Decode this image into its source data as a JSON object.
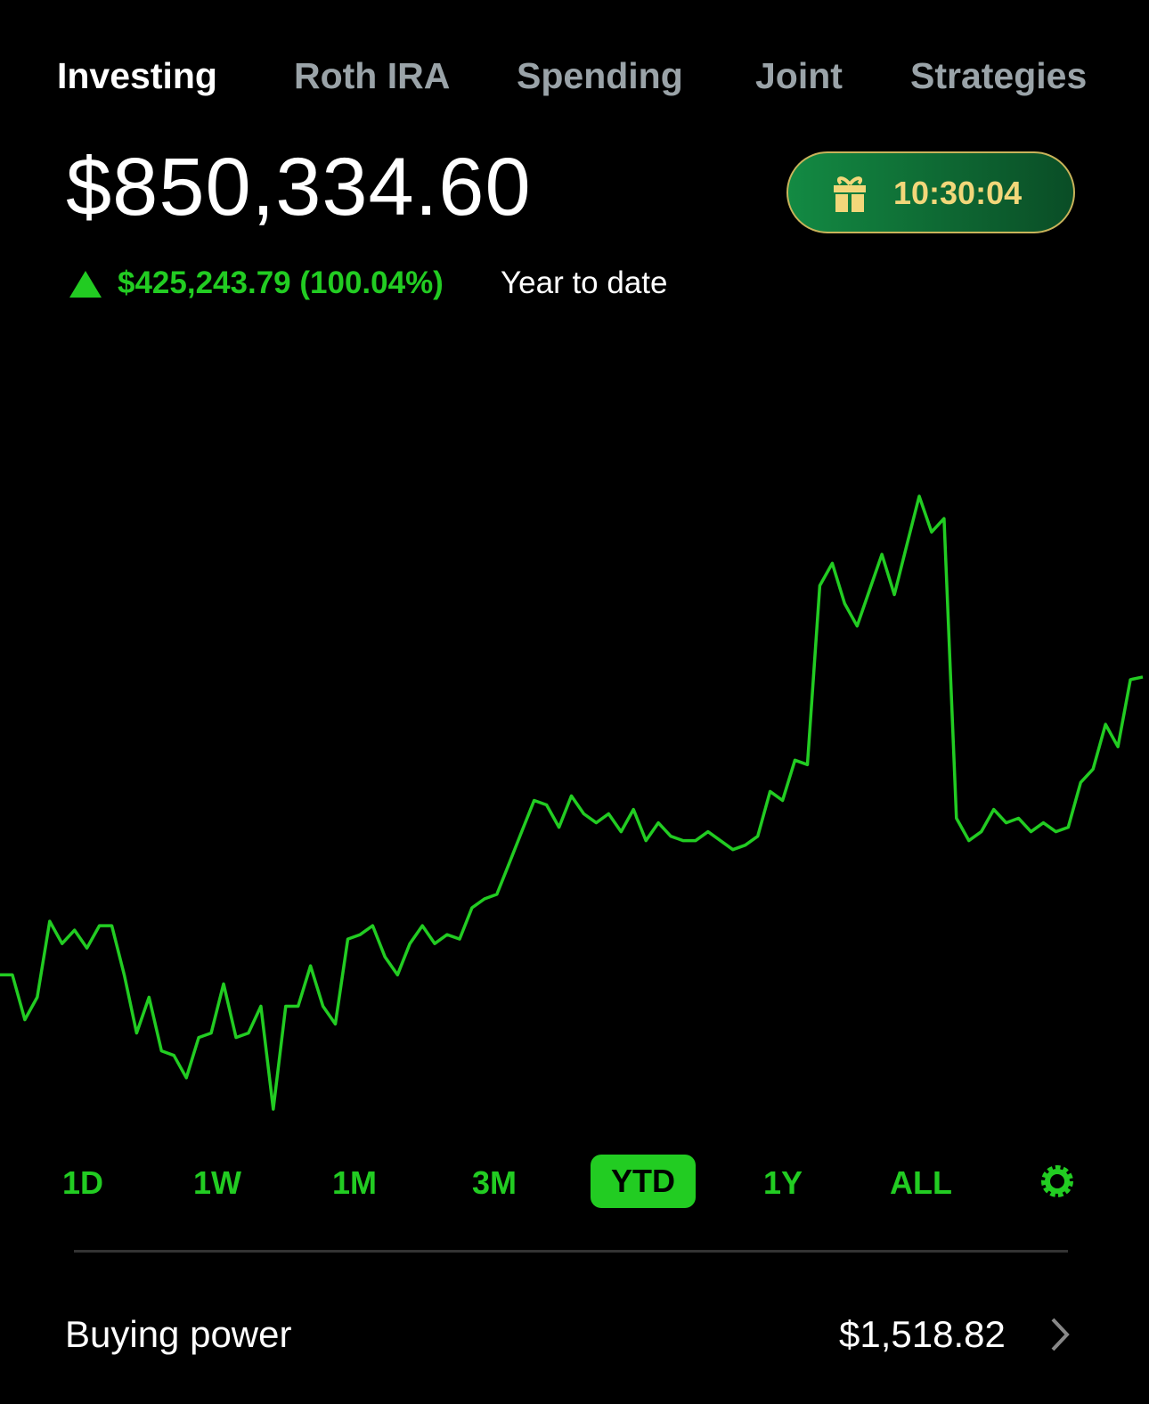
{
  "tabs": [
    "Investing",
    "Roth IRA",
    "Spending",
    "Joint",
    "Strategies"
  ],
  "balance": "$850,334.60",
  "timer": "10:30:04",
  "change": {
    "amount": "$425,243.79 (100.04%)",
    "period": "Year to date"
  },
  "chart_data": {
    "type": "line",
    "color": "#22cc22",
    "values": [
      425090.81,
      425100,
      361200,
      393200,
      501700,
      469800,
      488900,
      463400,
      495300,
      495300,
      425100,
      342100,
      393200,
      316600,
      310200,
      278200,
      335700,
      342100,
      412300,
      335700,
      342100,
      380400,
      233500,
      380400,
      380400,
      437900,
      380400,
      354900,
      476200,
      482600,
      495300,
      450600,
      425100,
      469800,
      495300,
      469800,
      482600,
      476200,
      520900,
      533600,
      540000,
      584700,
      629400,
      674100,
      667700,
      635800,
      680500,
      655000,
      642200,
      655000,
      629400,
      661300,
      616700,
      642200,
      623000,
      616700,
      616700,
      629400,
      616700,
      603900,
      610300,
      623000,
      686900,
      674100,
      731600,
      725200,
      980600,
      1012500,
      955100,
      923100,
      974200,
      1025300,
      967800,
      1038100,
      1108300,
      1057200,
      1076400,
      648600,
      616700,
      629400,
      661300,
      642200,
      648600,
      629400,
      642200,
      629400,
      635800,
      699700,
      718800,
      782700,
      750700,
      846500,
      850334.6
    ]
  },
  "ranges": [
    "1D",
    "1W",
    "1M",
    "3M",
    "YTD",
    "1Y",
    "ALL"
  ],
  "buying_power": {
    "label": "Buying power",
    "value": "$1,518.82"
  }
}
